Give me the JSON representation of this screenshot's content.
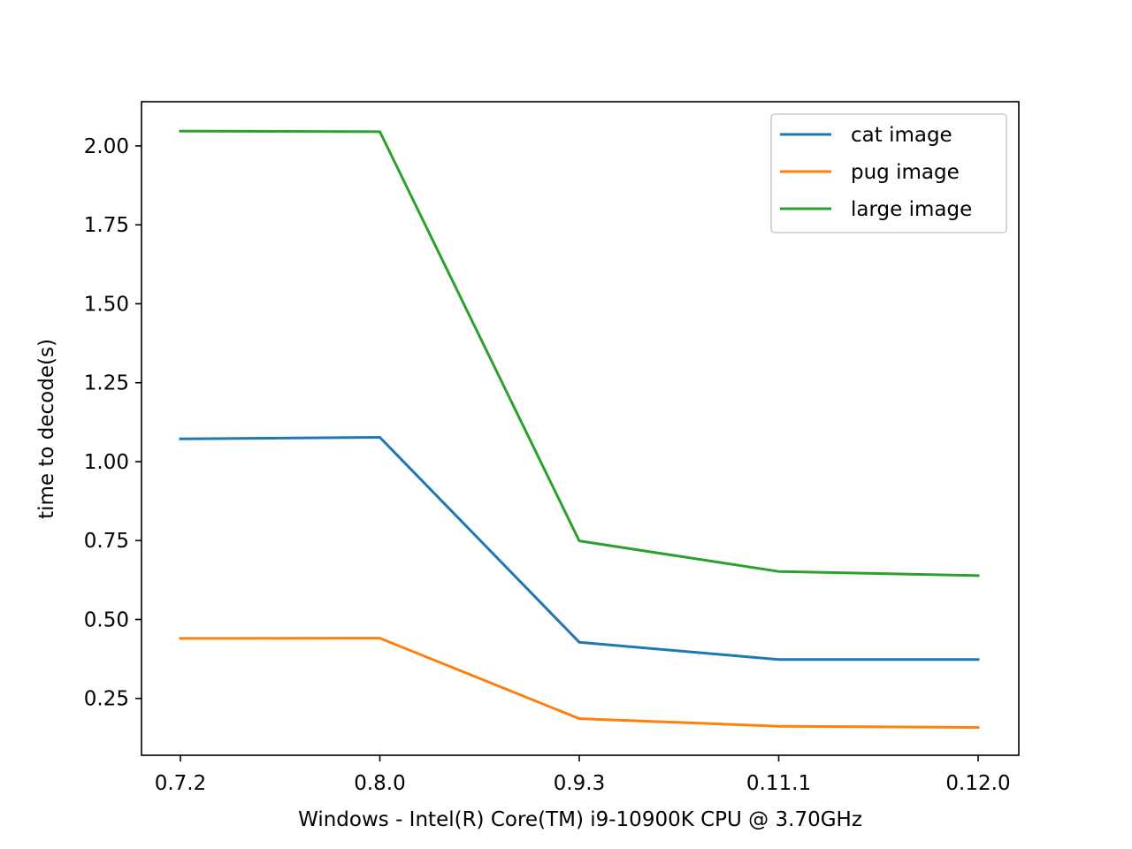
{
  "chart_data": {
    "type": "line",
    "title": "",
    "xlabel": "Windows - Intel(R) Core(TM) i9-10900K CPU @ 3.70GHz",
    "ylabel": "time to decode(s)",
    "categories": [
      "0.7.2",
      "0.8.0",
      "0.9.3",
      "0.11.1",
      "0.12.0"
    ],
    "ylim": [
      0.07,
      2.14
    ],
    "yticks": [
      0.25,
      0.5,
      0.75,
      1.0,
      1.25,
      1.5,
      1.75,
      2.0
    ],
    "ytick_labels": [
      "0.25",
      "0.50",
      "0.75",
      "1.00",
      "1.25",
      "1.50",
      "1.75",
      "2.00"
    ],
    "grid": false,
    "legend_position": "top-right",
    "series": [
      {
        "name": "cat image",
        "color": "#1f77b4",
        "values": [
          1.072,
          1.077,
          0.428,
          0.373,
          0.373
        ]
      },
      {
        "name": "pug image",
        "color": "#ff7f0e",
        "values": [
          0.44,
          0.441,
          0.186,
          0.162,
          0.158
        ]
      },
      {
        "name": "large image",
        "color": "#2ca02c",
        "values": [
          2.047,
          2.045,
          0.749,
          0.652,
          0.639
        ]
      }
    ]
  }
}
